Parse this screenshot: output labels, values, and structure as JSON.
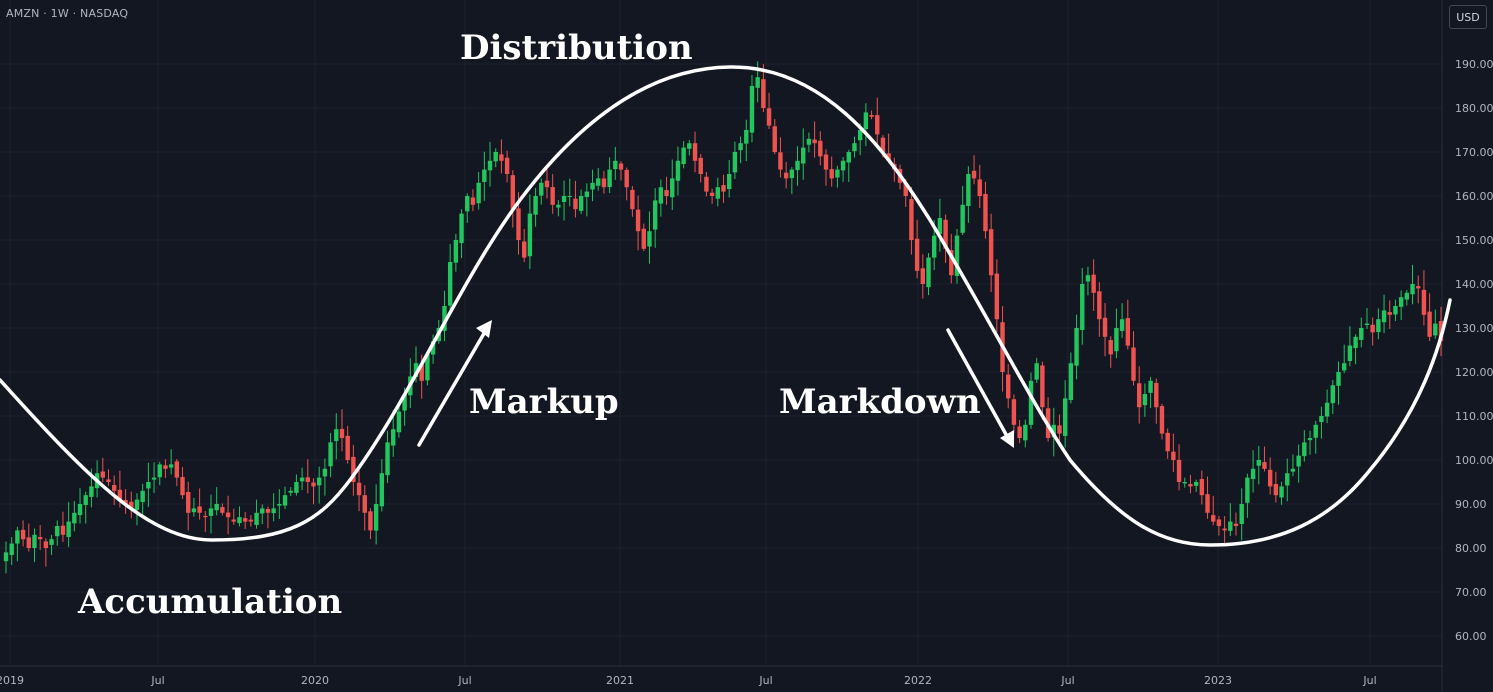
{
  "header": {
    "symbol": "AMZN · 1W · NASDAQ",
    "currency": "USD"
  },
  "annotations": {
    "distribution": "Distribution",
    "markup": "Markup",
    "markdown": "Markdown",
    "accumulation": "Accumulation"
  },
  "colors": {
    "background": "#131722",
    "grid": "#1e222d",
    "up": "#26a69a",
    "up_bright": "#22c55e",
    "down": "#ef5350",
    "axis_text": "#b2b5be",
    "overlay": "#ffffff"
  },
  "chart_data": {
    "type": "candlestick",
    "title": "",
    "ylim": [
      55,
      200
    ],
    "y_ticks": [
      60,
      70,
      80,
      90,
      100,
      110,
      120,
      130,
      140,
      150,
      160,
      170,
      180,
      190
    ],
    "x_ticks": [
      "2019",
      "Jul",
      "2020",
      "Jul",
      "2021",
      "Jul",
      "2022",
      "Jul",
      "2023",
      "Jul"
    ],
    "grid": true,
    "series": [
      {
        "name": "AMZN",
        "type": "candlestick",
        "close_weekly": [
          79,
          81,
          84,
          82,
          80,
          83,
          82,
          80,
          82,
          85,
          83,
          86,
          88,
          90,
          92,
          94,
          97,
          96,
          95,
          93,
          91,
          90,
          89,
          91,
          93,
          95,
          96,
          99,
          98,
          99,
          96,
          92,
          88,
          89,
          88,
          87,
          89,
          90,
          88,
          87,
          86,
          87,
          86,
          86,
          88,
          89,
          88,
          89,
          90,
          92,
          93,
          95,
          96,
          95,
          94,
          96,
          98,
          104,
          107,
          105,
          100,
          95,
          92,
          88,
          84,
          90,
          97,
          104,
          107,
          111,
          115,
          119,
          122,
          118,
          124,
          127,
          130,
          135,
          145,
          150,
          156,
          160,
          158,
          163,
          166,
          168,
          170,
          168,
          165,
          157,
          150,
          146,
          156,
          160,
          163,
          162,
          158,
          158,
          160,
          160,
          157,
          160,
          161,
          163,
          164,
          162,
          166,
          168,
          166,
          162,
          157,
          152,
          148,
          152,
          159,
          162,
          160,
          164,
          168,
          171,
          172,
          168,
          165,
          161,
          160,
          162,
          161,
          165,
          170,
          172,
          175,
          185,
          187,
          180,
          176,
          170,
          166,
          164,
          166,
          168,
          171,
          173,
          172,
          169,
          166,
          164,
          166,
          168,
          170,
          172,
          175,
          179,
          178,
          174,
          170,
          168,
          166,
          163,
          160,
          150,
          143,
          140,
          146,
          151,
          155,
          148,
          142,
          151,
          158,
          165,
          164,
          160,
          152,
          142,
          132,
          120,
          114,
          108,
          105,
          108,
          118,
          122,
          112,
          105,
          108,
          106,
          114,
          122,
          130,
          140,
          142,
          138,
          132,
          128,
          124,
          130,
          132,
          126,
          118,
          112,
          115,
          118,
          112,
          106,
          102,
          100,
          95,
          95,
          94,
          95,
          92,
          88,
          86,
          85,
          84,
          86,
          85,
          90,
          96,
          98,
          100,
          98,
          94,
          92,
          94,
          97,
          98,
          101,
          104,
          105,
          108,
          110,
          113,
          117,
          120,
          122,
          126,
          128,
          130,
          131,
          129,
          132,
          134,
          133,
          135,
          137,
          138,
          140,
          139,
          133,
          128,
          131,
          127
        ]
      }
    ]
  }
}
